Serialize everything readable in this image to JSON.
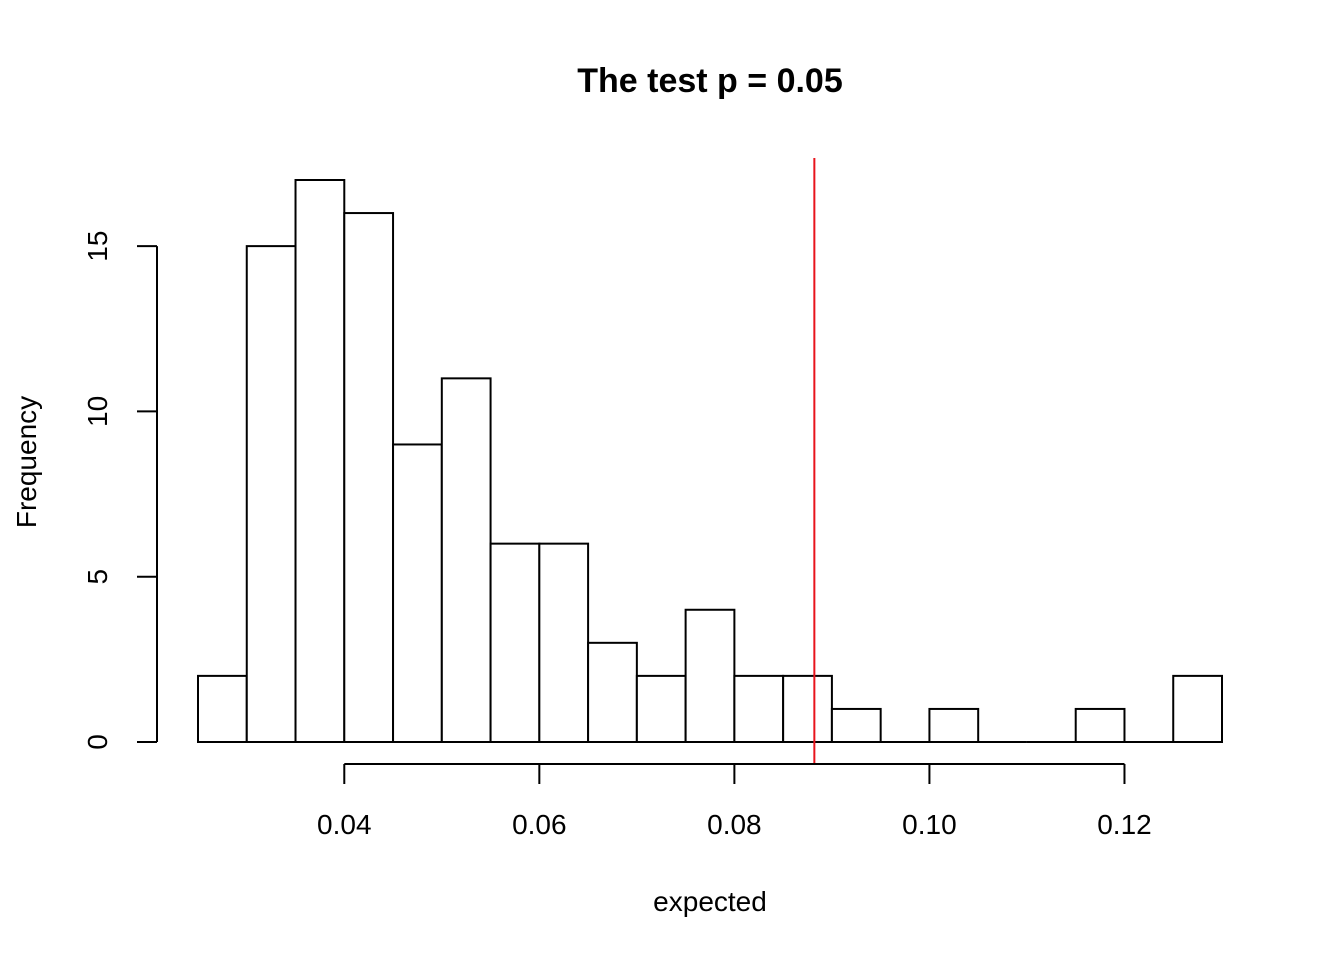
{
  "chart_data": {
    "type": "bar",
    "subtype": "histogram",
    "title": "The test p = 0.05",
    "xlabel": "expected",
    "ylabel": "Frequency",
    "bin_edges": [
      0.025,
      0.03,
      0.035,
      0.04,
      0.045,
      0.05,
      0.055,
      0.06,
      0.065,
      0.07,
      0.075,
      0.08,
      0.085,
      0.09,
      0.095,
      0.1,
      0.105,
      0.11,
      0.115,
      0.12,
      0.125,
      0.13
    ],
    "counts": [
      2,
      15,
      17,
      16,
      9,
      11,
      6,
      6,
      3,
      2,
      4,
      2,
      2,
      1,
      0,
      1,
      0,
      0,
      1,
      0,
      2
    ],
    "xlim": [
      0.025,
      0.13
    ],
    "ylim": [
      0,
      17
    ],
    "x_ticks": [
      0.04,
      0.06,
      0.08,
      0.1,
      0.12
    ],
    "x_tick_labels": [
      "0.04",
      "0.06",
      "0.08",
      "0.10",
      "0.12"
    ],
    "y_ticks": [
      0,
      5,
      10,
      15
    ],
    "y_tick_labels": [
      "0",
      "5",
      "10",
      "15"
    ],
    "reference_line": {
      "x": 0.0882,
      "color": "#e8141c"
    },
    "bar_fill": "#ffffff",
    "bar_stroke": "#000000",
    "grid": false
  }
}
